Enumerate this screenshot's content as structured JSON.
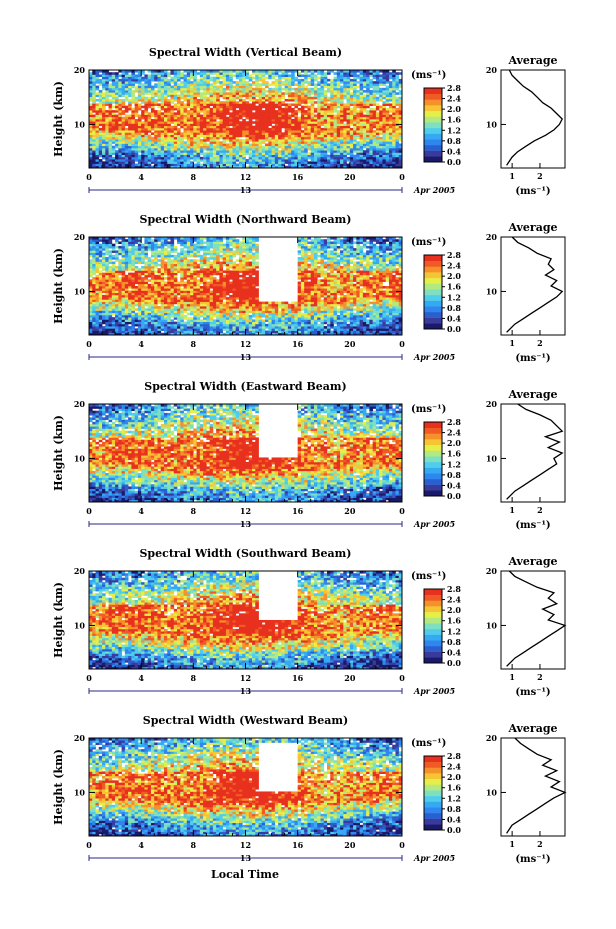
{
  "figure": {
    "xlabel": "Local Time",
    "ylabel": "Height (km)",
    "colorbar_unit": "(ms⁻¹)",
    "colorbar_ticks": [
      "0.0",
      "0.4",
      "0.8",
      "1.2",
      "1.6",
      "2.0",
      "2.4",
      "2.8"
    ],
    "date_label": "Apr 2005",
    "day_label": "13",
    "avg_title": "Average",
    "avg_xlabel": "(ms⁻¹)",
    "colorscale": [
      "#1a1a6a",
      "#3a3a9a",
      "#2a5fd0",
      "#2f86ee",
      "#35aaf2",
      "#4fcdea",
      "#7ee0c0",
      "#b2ea80",
      "#e6ee4a",
      "#f6c534",
      "#f6902a",
      "#f05a24",
      "#e8301e"
    ]
  },
  "chart_data": [
    {
      "type": "heatmap",
      "title": "Spectral Width (Vertical Beam)",
      "xlabel": "",
      "ylabel": "Height (km)",
      "x_ticks": [
        "0",
        "4",
        "8",
        "12",
        "16",
        "20",
        "0"
      ],
      "y_ticks": [
        "10",
        "20"
      ],
      "xlim": [
        0,
        24
      ],
      "ylim": [
        2,
        20
      ],
      "zlim": [
        0.0,
        2.8
      ],
      "z_unit": "ms⁻¹",
      "gap": null,
      "profile": {
        "title": "Average",
        "x_ticks": [
          "1",
          "2"
        ],
        "y_ticks": [
          "10",
          "20"
        ],
        "xlim": [
          0.6,
          2.9
        ],
        "heights": [
          2.5,
          4,
          5,
          6,
          7,
          8,
          9,
          10,
          11,
          12,
          13,
          14,
          15,
          16,
          17,
          18,
          19,
          20
        ],
        "values": [
          0.8,
          1.0,
          1.2,
          1.5,
          1.8,
          2.2,
          2.5,
          2.7,
          2.8,
          2.6,
          2.4,
          2.1,
          1.9,
          1.7,
          1.4,
          1.2,
          1.0,
          0.9
        ]
      }
    },
    {
      "type": "heatmap",
      "title": "Spectral Width (Northward Beam)",
      "xlabel": "",
      "ylabel": "Height (km)",
      "x_ticks": [
        "0",
        "4",
        "8",
        "12",
        "16",
        "20",
        "0"
      ],
      "y_ticks": [
        "10",
        "20"
      ],
      "xlim": [
        0,
        24
      ],
      "ylim": [
        2,
        20
      ],
      "zlim": [
        0.0,
        2.8
      ],
      "z_unit": "ms⁻¹",
      "gap": [
        13,
        16,
        8,
        20
      ],
      "profile": {
        "title": "Average",
        "x_ticks": [
          "1",
          "2"
        ],
        "y_ticks": [
          "10",
          "20"
        ],
        "xlim": [
          0.6,
          2.9
        ],
        "heights": [
          2.5,
          4,
          5,
          6,
          7,
          8,
          9,
          10,
          11,
          12,
          13,
          14,
          15,
          16,
          17,
          18,
          19,
          20
        ],
        "values": [
          0.8,
          1.1,
          1.4,
          1.7,
          2.0,
          2.3,
          2.6,
          2.8,
          2.4,
          2.6,
          2.2,
          2.5,
          2.3,
          2.4,
          1.9,
          1.6,
          1.2,
          1.0
        ]
      }
    },
    {
      "type": "heatmap",
      "title": "Spectral Width (Eastward Beam)",
      "xlabel": "",
      "ylabel": "Height (km)",
      "x_ticks": [
        "0",
        "4",
        "8",
        "12",
        "16",
        "20",
        "0"
      ],
      "y_ticks": [
        "10",
        "20"
      ],
      "xlim": [
        0,
        24
      ],
      "ylim": [
        2,
        20
      ],
      "zlim": [
        0.0,
        2.8
      ],
      "z_unit": "ms⁻¹",
      "gap": [
        13,
        16,
        10,
        20
      ],
      "profile": {
        "title": "Average",
        "x_ticks": [
          "1",
          "2"
        ],
        "y_ticks": [
          "10",
          "20"
        ],
        "xlim": [
          0.6,
          2.9
        ],
        "heights": [
          2.5,
          4,
          5,
          6,
          7,
          8,
          9,
          10,
          11,
          12,
          13,
          14,
          15,
          16,
          17,
          18,
          19,
          20
        ],
        "values": [
          0.8,
          1.1,
          1.4,
          1.7,
          2.0,
          2.3,
          2.6,
          2.5,
          2.8,
          2.3,
          2.7,
          2.2,
          2.8,
          2.6,
          2.4,
          2.0,
          1.5,
          1.2
        ]
      }
    },
    {
      "type": "heatmap",
      "title": "Spectral Width (Southward Beam)",
      "xlabel": "",
      "ylabel": "Height (km)",
      "x_ticks": [
        "0",
        "4",
        "8",
        "12",
        "16",
        "20",
        "0"
      ],
      "y_ticks": [
        "10",
        "20"
      ],
      "xlim": [
        0,
        24
      ],
      "ylim": [
        2,
        20
      ],
      "zlim": [
        0.0,
        2.8
      ],
      "z_unit": "ms⁻¹",
      "gap": [
        13,
        16,
        11,
        20
      ],
      "profile": {
        "title": "Average",
        "x_ticks": [
          "1",
          "2"
        ],
        "y_ticks": [
          "10",
          "20"
        ],
        "xlim": [
          0.6,
          2.9
        ],
        "heights": [
          2.5,
          4,
          5,
          6,
          7,
          8,
          9,
          10,
          11,
          12,
          13,
          14,
          15,
          16,
          17,
          18,
          19,
          20
        ],
        "values": [
          0.8,
          1.1,
          1.4,
          1.7,
          2.0,
          2.3,
          2.6,
          2.9,
          2.3,
          2.5,
          2.1,
          2.6,
          2.3,
          2.5,
          1.9,
          1.5,
          1.1,
          0.9
        ]
      }
    },
    {
      "type": "heatmap",
      "title": "Spectral Width (Westward Beam)",
      "xlabel": "Local Time",
      "ylabel": "Height (km)",
      "x_ticks": [
        "0",
        "4",
        "8",
        "12",
        "16",
        "20",
        "0"
      ],
      "y_ticks": [
        "10",
        "20"
      ],
      "xlim": [
        0,
        24
      ],
      "ylim": [
        2,
        20
      ],
      "zlim": [
        0.0,
        2.8
      ],
      "z_unit": "ms⁻¹",
      "gap": [
        13,
        16,
        10,
        19
      ],
      "profile": {
        "title": "Average",
        "x_ticks": [
          "1",
          "2"
        ],
        "y_ticks": [
          "10",
          "20"
        ],
        "xlim": [
          0.6,
          2.9
        ],
        "heights": [
          2.5,
          4,
          5,
          6,
          7,
          8,
          9,
          10,
          11,
          12,
          13,
          14,
          15,
          16,
          17,
          18,
          19,
          20
        ],
        "values": [
          0.8,
          1.0,
          1.3,
          1.6,
          1.9,
          2.2,
          2.5,
          2.9,
          2.4,
          2.7,
          2.2,
          2.6,
          2.1,
          2.4,
          1.9,
          1.6,
          1.3,
          1.1
        ]
      }
    }
  ]
}
